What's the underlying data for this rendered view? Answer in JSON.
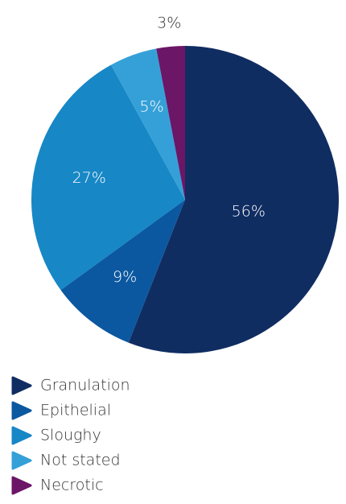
{
  "chart_data": {
    "type": "pie",
    "categories": [
      "Granulation",
      "Epithelial",
      "Sloughy",
      "Not stated",
      "Necrotic"
    ],
    "values": [
      56,
      9,
      27,
      5,
      3
    ],
    "value_labels": [
      "56%",
      "9%",
      "27%",
      "5%",
      "3%"
    ],
    "colors": [
      "#102d62",
      "#0b58a0",
      "#1787c6",
      "#35a0d8",
      "#6c1667"
    ]
  }
}
